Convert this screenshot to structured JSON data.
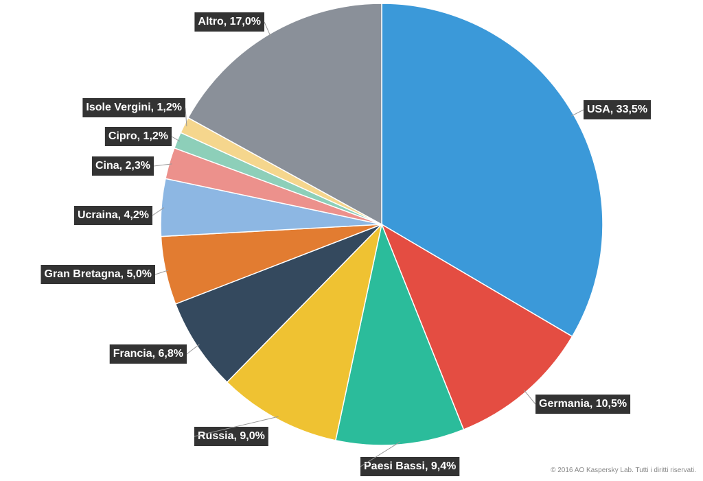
{
  "chart_data": {
    "type": "pie",
    "values": [
      33.5,
      10.5,
      9.4,
      9.0,
      6.8,
      5.0,
      4.2,
      2.3,
      1.2,
      1.2,
      17.0
    ],
    "value_labels": [
      "USA, 33,5%",
      "Germania, 10,5%",
      "Paesi Bassi, 9,4%",
      "Russia, 9,0%",
      "Francia, 6,8%",
      "Gran Bretagna, 5,0%",
      "Ucraina, 4,2%",
      "Cina, 2,3%",
      "Cipro, 1,2%",
      "Isole Vergini, 1,2%",
      "Altro, 17,0%"
    ],
    "colors": [
      "#3b99d9",
      "#e44d42",
      "#2bbc9b",
      "#efc232",
      "#34495e",
      "#e27c31",
      "#8db7e3",
      "#ec918c",
      "#8dcfb9",
      "#f5d68d",
      "#8a9099"
    ],
    "copyright": "© 2016 AO Kaspersky Lab. Tutti i diritti riservati."
  }
}
